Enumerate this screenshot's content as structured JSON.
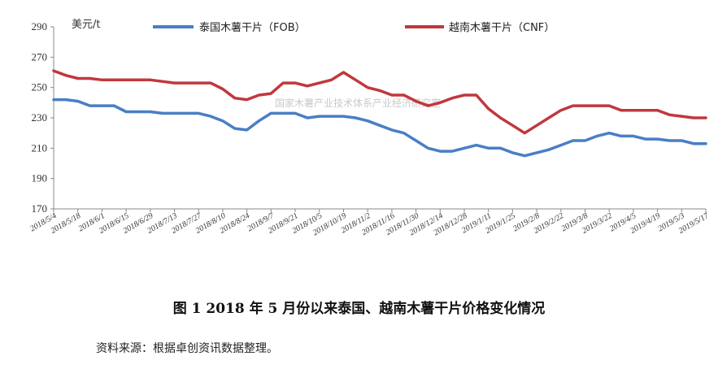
{
  "chart_data": {
    "type": "line",
    "ylabel": "美元/t",
    "ylim": [
      170,
      290
    ],
    "yticks": [
      170,
      190,
      210,
      230,
      250,
      270,
      290
    ],
    "grid": false,
    "legend_position": "top",
    "x_labels": [
      "2018/5/4",
      "2018/5/18",
      "2018/6/1",
      "2018/6/15",
      "2018/6/29",
      "2018/7/13",
      "2018/7/27",
      "2018/8/10",
      "2018/8/24",
      "2018/9/7",
      "2018/9/21",
      "2018/10/5",
      "2018/10/19",
      "2018/11/2",
      "2018/11/16",
      "2018/11/30",
      "2018/12/14",
      "2018/12/28",
      "2019/1/11",
      "2019/1/25",
      "2019/2/8",
      "2019/2/22",
      "2019/3/8",
      "2019/3/22",
      "2019/4/5",
      "2019/4/19",
      "2019/5/3",
      "2019/5/17"
    ],
    "series": [
      {
        "name": "泰国木薯干片（FOB）",
        "color": "#4a7ec5",
        "values": [
          242,
          242,
          241,
          238,
          238,
          238,
          234,
          234,
          234,
          233,
          233,
          233,
          233,
          231,
          228,
          223,
          222,
          228,
          233,
          233,
          233,
          230,
          231,
          231,
          231,
          230,
          228,
          225,
          222,
          220,
          215,
          210,
          208,
          208,
          210,
          212,
          210,
          210,
          207,
          205,
          207,
          209,
          212,
          215,
          215,
          218,
          220,
          218,
          218,
          216,
          216,
          215,
          215,
          213,
          213
        ]
      },
      {
        "name": "越南木薯干片（CNF）",
        "color": "#c0383d",
        "values": [
          261,
          258,
          256,
          256,
          255,
          255,
          255,
          255,
          255,
          254,
          253,
          253,
          253,
          253,
          249,
          243,
          242,
          245,
          246,
          253,
          253,
          251,
          253,
          255,
          260,
          255,
          250,
          248,
          245,
          245,
          241,
          238,
          240,
          243,
          245,
          245,
          236,
          230,
          225,
          220,
          225,
          230,
          235,
          238,
          238,
          238,
          238,
          235,
          235,
          235,
          235,
          232,
          231,
          230,
          230
        ]
      }
    ],
    "annotations": [
      "国家木薯产业技术体系产业经济研究室"
    ]
  },
  "caption": "图 1    2018 年 5 月份以来泰国、越南木薯干片价格变化情况",
  "source": "资料来源：根据卓创资讯数据整理。"
}
